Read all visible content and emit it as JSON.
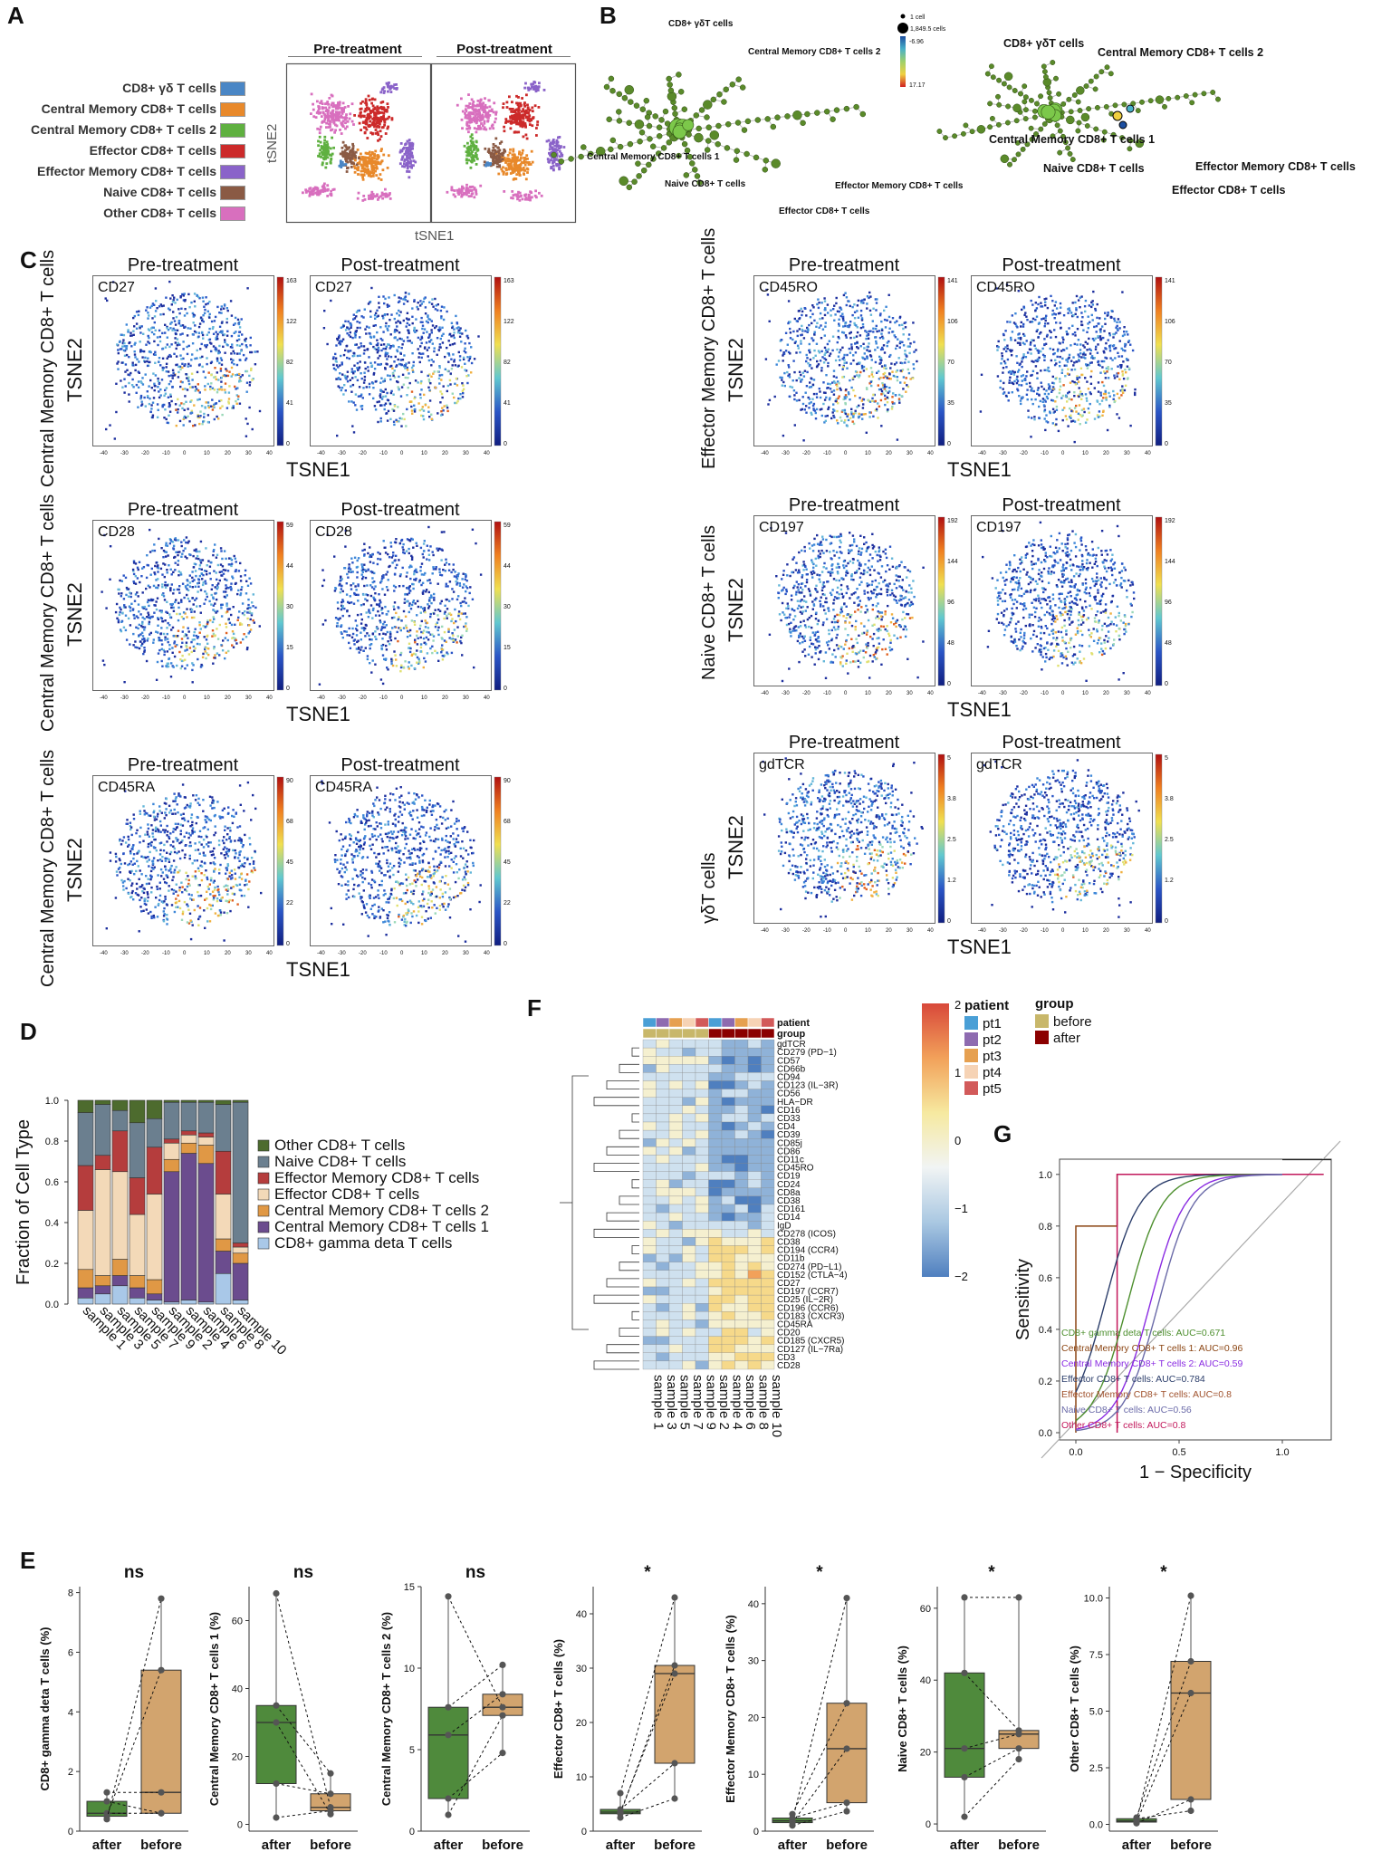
{
  "panels": {
    "A": "A",
    "B": "B",
    "C": "C",
    "D": "D",
    "E": "E",
    "F": "F",
    "G": "G"
  },
  "colors": {
    "cd8_gd": "#4a86c5",
    "cm1": "#e8892b",
    "cm2": "#5fb040",
    "eff": "#cc2a2a",
    "em": "#8a63c9",
    "naive": "#8a5a44",
    "other": "#d86fbe",
    "green_box": "#4f8a3c",
    "tan_box": "#d2a46e",
    "before": "#c8b76a",
    "after": "#8b0000"
  },
  "panelA": {
    "legend": [
      {
        "label": "CD8+ γδ T cells",
        "color": "#4a86c5"
      },
      {
        "label": "Central Memory CD8+ T cells",
        "color": "#e8892b"
      },
      {
        "label": "Central Memory CD8+ T cells 2",
        "color": "#5fb040"
      },
      {
        "label": "Effector CD8+ T cells",
        "color": "#cc2a2a"
      },
      {
        "label": "Effector Memory CD8+ T cells",
        "color": "#8a63c9"
      },
      {
        "label": "Naive CD8+ T cells",
        "color": "#8a5a44"
      },
      {
        "label": "Other CD8+ T cells",
        "color": "#d86fbe"
      }
    ],
    "pre": "Pre-treatment",
    "post": "Post-treatment",
    "xlabel": "tSNE1",
    "ylabel": "tSNE2"
  },
  "panelB": {
    "legend_cells_small": "1 cell",
    "legend_cells_big": "1,849.5 cells",
    "scale_low": "-6.96",
    "scale_high": "17.17",
    "left_labels": [
      "CD8+ γδT cells",
      "Central Memory CD8+ T cells 2",
      "Central Memory CD8+ T cells 1",
      "Naive CD8+ T cells",
      "Effector Memory CD8+ T cells",
      "Effector CD8+ T cells"
    ],
    "right_labels": [
      "CD8+ γδT cells",
      "Central Memory CD8+ T cells 2",
      "Central Memory CD8+ T cells 1",
      "Effector Memory CD8+ T cells",
      "Naive CD8+ T cells",
      "Effector CD8+ T cells"
    ]
  },
  "panelC": {
    "pre": "Pre-treatment",
    "post": "Post-treatment",
    "xlabel": "TSNE1",
    "ylabel": "TSNE2",
    "rows": [
      {
        "side": "Central Memory CD8+ T cells",
        "marker": "CD27",
        "scale": [
          "163",
          "122",
          "82",
          "41",
          "0"
        ]
      },
      {
        "side": "Central Memory CD8+ T cells",
        "marker": "CD28",
        "scale": [
          "59",
          "44",
          "30",
          "15",
          "0"
        ]
      },
      {
        "side": "Central Memory CD8+ T cells",
        "marker": "CD45RA",
        "scale": [
          "90",
          "68",
          "45",
          "22",
          "0"
        ]
      },
      {
        "side": "Effector Memory CD8+ T cells",
        "marker": "CD45RO",
        "scale": [
          "141",
          "106",
          "70",
          "35",
          "0"
        ]
      },
      {
        "side": "Naive CD8+ T cells",
        "marker": "CD197",
        "scale": [
          "192",
          "144",
          "96",
          "48",
          "0"
        ]
      },
      {
        "side": "γδT cells",
        "marker": "gdTCR",
        "scale": [
          "5",
          "3.8",
          "2.5",
          "1.2",
          "0"
        ]
      }
    ]
  },
  "chart_data": [
    {
      "panel": "D",
      "type": "bar",
      "stacked": true,
      "ylabel": "Fraction of Cell Type",
      "ylim": [
        0,
        1
      ],
      "yticks": [
        "0.0",
        "0.2",
        "0.4",
        "0.6",
        "0.8",
        "1.0"
      ],
      "categories": [
        "sample 1",
        "sample 3",
        "sample 5",
        "sample 7",
        "sample 9",
        "sample 2",
        "sample 4",
        "sample 6",
        "sample 8",
        "sample 10"
      ],
      "series": [
        {
          "name": "CD8+ gamma deta T cells",
          "color": "#a9c8e8",
          "values": [
            0.03,
            0.05,
            0.09,
            0.03,
            0.02,
            0.01,
            0.02,
            0.01,
            0.15,
            0.02
          ]
        },
        {
          "name": "Central Memory CD8+ T cells 1",
          "color": "#6b4c8e",
          "values": [
            0.05,
            0.04,
            0.05,
            0.05,
            0.03,
            0.64,
            0.72,
            0.68,
            0.11,
            0.18
          ]
        },
        {
          "name": "Central Memory CD8+ T cells 2",
          "color": "#e09845",
          "values": [
            0.09,
            0.05,
            0.08,
            0.06,
            0.07,
            0.06,
            0.05,
            0.09,
            0.06,
            0.05
          ]
        },
        {
          "name": "Effector CD8+ T cells",
          "color": "#f3d9b8",
          "values": [
            0.29,
            0.52,
            0.43,
            0.3,
            0.42,
            0.08,
            0.04,
            0.04,
            0.22,
            0.03
          ]
        },
        {
          "name": "Effector Memory CD8+ T cells",
          "color": "#b53d3d",
          "values": [
            0.22,
            0.07,
            0.2,
            0.18,
            0.23,
            0.02,
            0.02,
            0.02,
            0.21,
            0.02
          ]
        },
        {
          "name": "Naive CD8+ T cells",
          "color": "#6b7f8f",
          "values": [
            0.26,
            0.25,
            0.1,
            0.27,
            0.14,
            0.18,
            0.14,
            0.15,
            0.23,
            0.69
          ]
        },
        {
          "name": "Other CD8+ T cells",
          "color": "#4d6b2e",
          "values": [
            0.06,
            0.02,
            0.05,
            0.11,
            0.09,
            0.01,
            0.01,
            0.01,
            0.02,
            0.01
          ]
        }
      ]
    },
    {
      "panel": "E",
      "type": "box",
      "groups": [
        "after",
        "before"
      ],
      "plots": [
        {
          "ylabel": "CD8+ gamma deta T cells (%)",
          "sig": "ns",
          "yticks": [
            0,
            2,
            4,
            6,
            8
          ],
          "ylim": [
            0,
            8.2
          ],
          "after": {
            "q1": 0.5,
            "med": 0.6,
            "q3": 1.0,
            "min": 0.4,
            "max": 1.3
          },
          "before": {
            "q1": 0.6,
            "med": 1.3,
            "q3": 5.4,
            "min": 0.6,
            "max": 7.8
          },
          "points_after": [
            0.5,
            0.6,
            1.3,
            0.4,
            1.0
          ],
          "points_before": [
            5.4,
            0.6,
            1.3,
            7.8,
            0.6
          ]
        },
        {
          "ylabel": "Central Memory CD8+ T cells 1 (%)",
          "sig": "ns",
          "yticks": [
            0,
            20,
            40,
            60
          ],
          "ylim": [
            -2,
            70
          ],
          "after": {
            "q1": 12,
            "med": 30,
            "q3": 35,
            "min": 2,
            "max": 68
          },
          "before": {
            "q1": 4,
            "med": 5,
            "q3": 9,
            "min": 3,
            "max": 15
          },
          "points_after": [
            68,
            35,
            12,
            2,
            30
          ],
          "points_before": [
            5,
            15,
            9,
            4,
            3
          ]
        },
        {
          "ylabel": "Central Memory CD8+ T cells 2 (%)",
          "sig": "ns",
          "yticks": [
            0,
            5,
            10,
            15
          ],
          "ylim": [
            0,
            15
          ],
          "after": {
            "q1": 2.0,
            "med": 5.9,
            "q3": 7.6,
            "min": 1.0,
            "max": 14.4
          },
          "before": {
            "q1": 7.1,
            "med": 7.6,
            "q3": 8.4,
            "min": 4.8,
            "max": 10.2
          },
          "points_after": [
            14.4,
            7.6,
            5.9,
            2.0,
            1.0
          ],
          "points_before": [
            7.6,
            10.2,
            8.4,
            4.8,
            7.1
          ]
        },
        {
          "ylabel": "Effector CD8+ T cells (%)",
          "sig": "*",
          "yticks": [
            0,
            10,
            20,
            30,
            40
          ],
          "ylim": [
            0,
            45
          ],
          "after": {
            "q1": 3.2,
            "med": 3.5,
            "q3": 4.0,
            "min": 2.5,
            "max": 7
          },
          "before": {
            "q1": 12.5,
            "med": 29,
            "q3": 30.5,
            "min": 6,
            "max": 43
          },
          "points_after": [
            3.5,
            7,
            3.2,
            4.0,
            2.5
          ],
          "points_before": [
            29,
            43,
            30.5,
            12.5,
            6
          ]
        },
        {
          "ylabel": "Effector Memory CD8+ T cells (%)",
          "sig": "*",
          "yticks": [
            0,
            10,
            20,
            30,
            40
          ],
          "ylim": [
            0,
            43
          ],
          "after": {
            "q1": 1.5,
            "med": 1.8,
            "q3": 2.3,
            "min": 1.0,
            "max": 3
          },
          "before": {
            "q1": 5,
            "med": 14.5,
            "q3": 22.5,
            "min": 3.5,
            "max": 41
          },
          "points_after": [
            1.8,
            3,
            1.5,
            2.3,
            1.0
          ],
          "points_before": [
            41,
            22.5,
            14.5,
            5,
            3.5
          ]
        },
        {
          "ylabel": "Naive CD8+ T cells (%)",
          "sig": "*",
          "yticks": [
            0,
            20,
            40,
            60
          ],
          "ylim": [
            -2,
            66
          ],
          "after": {
            "q1": 13,
            "med": 21,
            "q3": 42,
            "min": 2,
            "max": 63
          },
          "before": {
            "q1": 21,
            "med": 25,
            "q3": 26,
            "min": 18,
            "max": 63
          },
          "points_after": [
            63,
            42,
            21,
            13,
            2
          ],
          "points_before": [
            63,
            26,
            25,
            21,
            18
          ]
        },
        {
          "ylabel": "Other CD8+ T cells (%)",
          "sig": "*",
          "yticks": [
            "0.0",
            "2.5",
            "5.0",
            "7.5",
            "10.0"
          ],
          "ylim": [
            -0.3,
            10.5
          ],
          "after": {
            "q1": 0.1,
            "med": 0.15,
            "q3": 0.25,
            "min": 0.05,
            "max": 0.3
          },
          "before": {
            "q1": 1.1,
            "med": 5.8,
            "q3": 7.2,
            "min": 0.6,
            "max": 10.1
          },
          "points_after": [
            0.15,
            0.3,
            0.1,
            0.05,
            0.25
          ],
          "points_before": [
            10.1,
            7.2,
            5.8,
            1.1,
            0.6
          ]
        }
      ]
    },
    {
      "panel": "F",
      "type": "heatmap",
      "samples": [
        "sample 1",
        "sample 3",
        "sample 5",
        "sample 7",
        "sample 9",
        "sample 2",
        "sample 4",
        "sample 6",
        "sample 8",
        "sample 10"
      ],
      "patient": [
        "pt1",
        "pt2",
        "pt3",
        "pt4",
        "pt5",
        "pt1",
        "pt2",
        "pt3",
        "pt4",
        "pt5"
      ],
      "group": [
        "before",
        "before",
        "before",
        "before",
        "before",
        "after",
        "after",
        "after",
        "after",
        "after"
      ],
      "markers": [
        "gdTCR",
        "CD279 (PD−1)",
        "CD57",
        "CD66b",
        "CD94",
        "CD123 (IL−3R)",
        "CD56",
        "HLA−DR",
        "CD16",
        "CD33",
        "CD4",
        "CD39",
        "CD85j",
        "CD86",
        "CD11c",
        "CD45RO",
        "CD19",
        "CD24",
        "CD8a",
        "CD38",
        "CD161",
        "CD14",
        "IgD",
        "CD278 (ICOS)",
        "CD38",
        "CD194 (CCR4)",
        "CD11b",
        "CD274 (PD−L1)",
        "CD152 (CTLA−4)",
        "CD27",
        "CD197 (CCR7)",
        "CD25 (IL−2R)",
        "CD196 (CCR6)",
        "CD183 (CXCR3)",
        "CD45RA",
        "CD20",
        "CD185 (CXCR5)",
        "CD127 (IL−7Ra)",
        "CD3",
        "CD28"
      ],
      "legend_title_patient": "patient",
      "legend_title_group": "group",
      "patient_labels": [
        "pt1",
        "pt2",
        "pt3",
        "pt4",
        "pt5"
      ],
      "patient_colors": [
        "#4a9fd6",
        "#8e6bb0",
        "#e6a050",
        "#f6d3b5",
        "#d25a5a"
      ],
      "group_labels": [
        "before",
        "after"
      ],
      "scale": [
        "2",
        "1",
        "0",
        "−1",
        "−2"
      ],
      "row_patient_label": "patient",
      "row_group_label": "group"
    },
    {
      "panel": "G",
      "type": "line",
      "xlabel": "1 − Specificity",
      "ylabel": "Sensitivity",
      "xticks": [
        "0.0",
        "0.5",
        "1.0"
      ],
      "yticks": [
        "0.0",
        "0.2",
        "0.4",
        "0.6",
        "0.8",
        "1.0"
      ],
      "series": [
        {
          "name": "CD8+ gamma deta T cells: AUC=0.671",
          "color": "#4d8f2e"
        },
        {
          "name": "Central Memory CD8+ T cells 1: AUC=0.96",
          "color": "#8b4513"
        },
        {
          "name": "Central Memory CD8+ T cells 2: AUC=0.59",
          "color": "#8a2be2"
        },
        {
          "name": "Effector CD8+ T cells: AUC=0.784",
          "color": "#2c3e6b"
        },
        {
          "name": "Effector Memory CD8+ T cells: AUC=0.8",
          "color": "#a0522d"
        },
        {
          "name": "Naive CD8+ T cells: AUC=0.56",
          "color": "#6a6aa8"
        },
        {
          "name": "Other CD8+ T cells: AUC=0.8",
          "color": "#c2185b"
        }
      ]
    }
  ]
}
